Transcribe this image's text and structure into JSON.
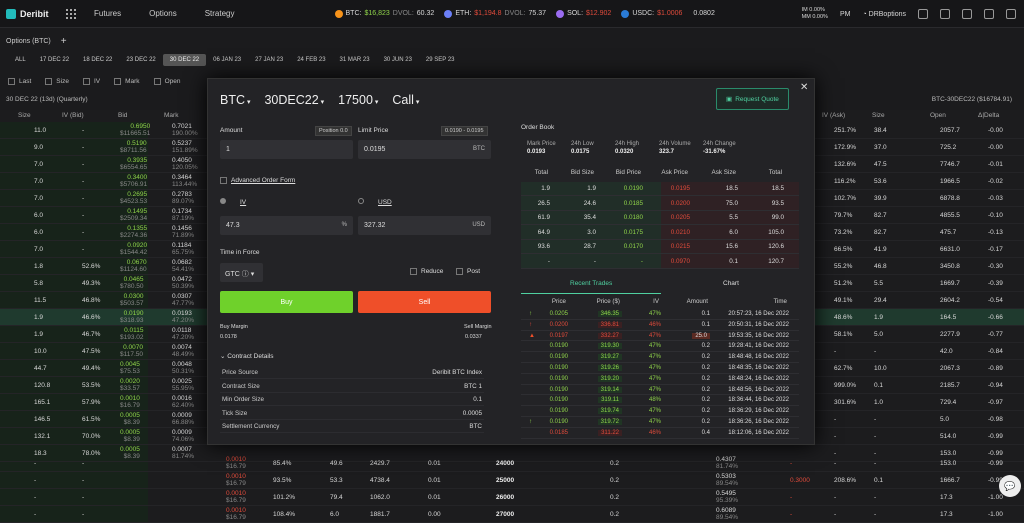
{
  "topbar": {
    "brand": "Deribit",
    "nav": [
      "Futures",
      "Options",
      "Strategy"
    ],
    "btc": {
      "label": "BTC:",
      "price": "$16,823",
      "dvol_label": "DVOL:",
      "dvol": "60.32"
    },
    "eth": {
      "label": "ETH:",
      "price": "$1,194.8",
      "dvol_label": "DVOL:",
      "dvol": "75.37"
    },
    "sol": {
      "label": "SOL:",
      "price": "$12.902"
    },
    "usdc": {
      "label": "USDC:",
      "price": "$1.0006",
      "extra": "0.0802"
    },
    "im_label": "IM",
    "im_val": "0.00%",
    "mm_label": "MM",
    "mm_val": "0.00%",
    "time": "PM",
    "account": "DRBoptions",
    "colors": {
      "btc": "#f7931a",
      "eth": "#6b7ff7",
      "sol": "#9a6cf0",
      "usdc": "#2a7bd6"
    }
  },
  "subbar": {
    "title": "Options (BTC)",
    "plus": "+"
  },
  "dates": [
    "ALL",
    "17 DEC 22",
    "18 DEC 22",
    "23 DEC 22",
    "30 DEC 22",
    "06 JAN 23",
    "27 JAN 23",
    "24 FEB 23",
    "31 MAR 23",
    "30 JUN 23",
    "29 SEP 23"
  ],
  "active_date": "30 DEC 22",
  "filters": [
    "Last",
    "Size",
    "IV",
    "Mark",
    "Open"
  ],
  "quarter": "30 DEC 22 (13d) (Quarterly)",
  "right_title": "BTC-30DEC22 ($16784.91)",
  "bg_headers": [
    "Size",
    "IV (Bid)",
    "Bid",
    "Mark",
    "IV (Ask)",
    "Size",
    "Open",
    "Δ|Delta"
  ],
  "bg_left": [
    {
      "size": "11.0",
      "iv": "-",
      "bid": "0.6950",
      "bidusd": "$11665.51",
      "mark": "0.7021",
      "markiv": "190.00%"
    },
    {
      "size": "9.0",
      "iv": "-",
      "bid": "0.5190",
      "bidusd": "$8711.56",
      "mark": "0.5237",
      "markiv": "151.89%"
    },
    {
      "size": "7.0",
      "iv": "-",
      "bid": "0.3935",
      "bidusd": "$6554.65",
      "mark": "0.4050",
      "markiv": "120.05%"
    },
    {
      "size": "7.0",
      "iv": "-",
      "bid": "0.3400",
      "bidusd": "$5706.91",
      "mark": "0.3464",
      "markiv": "113.44%"
    },
    {
      "size": "7.0",
      "iv": "-",
      "bid": "0.2695",
      "bidusd": "$4523.53",
      "mark": "0.2783",
      "markiv": "89.07%"
    },
    {
      "size": "6.0",
      "iv": "-",
      "bid": "0.1495",
      "bidusd": "$2509.34",
      "mark": "0.1734",
      "markiv": "87.19%"
    },
    {
      "size": "6.0",
      "iv": "-",
      "bid": "0.1355",
      "bidusd": "$2274.36",
      "mark": "0.1456",
      "markiv": "71.89%"
    },
    {
      "size": "7.0",
      "iv": "-",
      "bid": "0.0920",
      "bidusd": "$1544.42",
      "mark": "0.1184",
      "markiv": "65.75%"
    },
    {
      "size": "1.8",
      "iv": "52.6%",
      "bid": "0.0670",
      "bidusd": "$1124.60",
      "mark": "0.0682",
      "markiv": "54.41%"
    },
    {
      "size": "5.8",
      "iv": "49.3%",
      "bid": "0.0465",
      "bidusd": "$780.50",
      "mark": "0.0472",
      "markiv": "50.39%"
    },
    {
      "size": "11.5",
      "iv": "46.8%",
      "bid": "0.0300",
      "bidusd": "$503.57",
      "mark": "0.0307",
      "markiv": "47.77%"
    },
    {
      "size": "1.9",
      "iv": "46.6%",
      "bid": "0.0190",
      "bidusd": "$318.93",
      "mark": "0.0193",
      "markiv": "47.20%"
    },
    {
      "size": "1.9",
      "iv": "46.7%",
      "bid": "0.0115",
      "bidusd": "$193.02",
      "mark": "0.0118",
      "markiv": "47.20%"
    },
    {
      "size": "10.0",
      "iv": "47.5%",
      "bid": "0.0070",
      "bidusd": "$117.50",
      "mark": "0.0074",
      "markiv": "48.49%"
    },
    {
      "size": "44.7",
      "iv": "49.4%",
      "bid": "0.0045",
      "bidusd": "$75.53",
      "mark": "0.0048",
      "markiv": "50.31%"
    },
    {
      "size": "120.8",
      "iv": "53.5%",
      "bid": "0.0020",
      "bidusd": "$33.57",
      "mark": "0.0025",
      "markiv": "55.95%"
    },
    {
      "size": "165.1",
      "iv": "57.9%",
      "bid": "0.0010",
      "bidusd": "$16.79",
      "mark": "0.0016",
      "markiv": "62.40%"
    },
    {
      "size": "146.5",
      "iv": "61.5%",
      "bid": "0.0005",
      "bidusd": "$8.39",
      "mark": "0.0009",
      "markiv": "66.88%"
    },
    {
      "size": "132.1",
      "iv": "70.0%",
      "bid": "0.0005",
      "bidusd": "$8.39",
      "mark": "0.0009",
      "markiv": "74.06%"
    },
    {
      "size": "18.3",
      "iv": "78.0%",
      "bid": "0.0005",
      "bidusd": "$8.39",
      "mark": "0.0007",
      "markiv": "81.74%"
    },
    {
      "size": "-",
      "iv": "-",
      "bid": "",
      "bidusd": "",
      "mark": "0.0007",
      "markiv": "88.88%"
    },
    {
      "size": "-",
      "iv": "-",
      "bid": "",
      "bidusd": "",
      "mark": "0.0007",
      "markiv": "95.39%"
    },
    {
      "size": "-",
      "iv": "-",
      "bid": "",
      "bidusd": "",
      "mark": "0.0002",
      "markiv": "89.54%"
    }
  ],
  "bg_right": [
    {
      "ivask": "251.7%",
      "size": "38.4",
      "open": "2057.7",
      "delta": "-0.00"
    },
    {
      "ivask": "172.9%",
      "size": "37.0",
      "open": "725.2",
      "delta": "-0.00"
    },
    {
      "ivask": "132.6%",
      "size": "47.5",
      "open": "7746.7",
      "delta": "-0.01"
    },
    {
      "ivask": "116.2%",
      "size": "53.6",
      "open": "1966.5",
      "delta": "-0.02"
    },
    {
      "ivask": "102.7%",
      "size": "39.9",
      "open": "6878.8",
      "delta": "-0.03"
    },
    {
      "ivask": "79.7%",
      "size": "82.7",
      "open": "4855.5",
      "delta": "-0.10"
    },
    {
      "ivask": "73.2%",
      "size": "82.7",
      "open": "475.7",
      "delta": "-0.13"
    },
    {
      "ivask": "66.5%",
      "size": "41.9",
      "open": "6631.0",
      "delta": "-0.17"
    },
    {
      "ivask": "55.2%",
      "size": "46.8",
      "open": "3450.8",
      "delta": "-0.30"
    },
    {
      "ivask": "51.2%",
      "size": "5.5",
      "open": "1669.7",
      "delta": "-0.39"
    },
    {
      "ivask": "49.1%",
      "size": "29.4",
      "open": "2604.2",
      "delta": "-0.54"
    },
    {
      "ivask": "48.6%",
      "size": "1.9",
      "open": "164.5",
      "delta": "-0.66"
    },
    {
      "ivask": "58.1%",
      "size": "5.0",
      "open": "2277.9",
      "delta": "-0.77"
    },
    {
      "ivask": "-",
      "size": "-",
      "open": "42.0",
      "delta": "-0.84"
    },
    {
      "ivask": "62.7%",
      "size": "10.0",
      "open": "2067.3",
      "delta": "-0.89"
    },
    {
      "ivask": "999.0%",
      "size": "0.1",
      "open": "2185.7",
      "delta": "-0.94"
    },
    {
      "ivask": "301.6%",
      "size": "1.0",
      "open": "729.4",
      "delta": "-0.97"
    },
    {
      "ivask": "-",
      "size": "-",
      "open": "5.0",
      "delta": "-0.98"
    },
    {
      "ivask": "-",
      "size": "-",
      "open": "514.0",
      "delta": "-0.99"
    },
    {
      "ivask": "-",
      "size": "-",
      "open": "153.0",
      "delta": "-0.99"
    },
    {
      "ivask": "208.6%",
      "size": "0.1",
      "open": "1666.7",
      "delta": "-0.99"
    },
    {
      "ivask": "-",
      "size": "-",
      "open": "17.3",
      "delta": "-1.00"
    },
    {
      "ivask": "-",
      "size": "-",
      "open": "17.3",
      "delta": "-1.00"
    }
  ],
  "bg_bottom": [
    {
      "bid": "0.0010",
      "bidusd": "$16.79",
      "iv": "85.4%",
      "a": "49.6",
      "b": "2429.7",
      "c": "0.01",
      "strike": "24000",
      "p": "0.2",
      "m": "0.4307",
      "miv": "81.74%",
      "q": "-"
    },
    {
      "bid": "0.0010",
      "bidusd": "$16.79",
      "iv": "93.5%",
      "a": "53.3",
      "b": "4738.4",
      "c": "0.01",
      "strike": "25000",
      "p": "0.2",
      "m": "0.5303",
      "miv": "89.54%",
      "q": "0.3000"
    },
    {
      "bid": "0.0010",
      "bidusd": "$16.79",
      "iv": "101.2%",
      "a": "79.4",
      "b": "1062.0",
      "c": "0.01",
      "strike": "26000",
      "p": "0.2",
      "m": "0.5495",
      "miv": "95.39%",
      "q": "-"
    },
    {
      "bid": "0.0010",
      "bidusd": "$16.79",
      "iv": "108.4%",
      "a": "6.0",
      "b": "1881.7",
      "c": "0.00",
      "strike": "27000",
      "p": "0.2",
      "m": "0.6089",
      "miv": "89.54%",
      "q": "-"
    }
  ],
  "modal": {
    "asset": "BTC",
    "expiry": "30DEC22",
    "strike": "17500",
    "type": "Call",
    "request_quote": "Request Quote",
    "amount_label": "Amount",
    "position": "Position 0.0",
    "amount": "1",
    "limit_label": "Limit Price",
    "limit_range": "0.0190 - 0.0195",
    "limit": "0.0195",
    "limit_unit": "BTC",
    "advanced": "Advanced Order Form",
    "iv_label": "IV",
    "usd_label": "USD",
    "iv_value": "47.3",
    "iv_unit": "%",
    "usd_value": "327.32",
    "usd_unit": "USD",
    "tif_label": "Time in Force",
    "tif": "GTC",
    "reduce": "Reduce",
    "post": "Post",
    "buy": "Buy",
    "sell": "Sell",
    "buy_margin_label": "Buy Margin",
    "buy_margin": "0.0178",
    "sell_margin_label": "Sell Margin",
    "sell_margin": "0.0337",
    "contract_details": "Contract Details",
    "details": [
      {
        "k": "Price Source",
        "v": "Deribit BTC Index"
      },
      {
        "k": "Contract Size",
        "v": "BTC 1"
      },
      {
        "k": "Min Order Size",
        "v": "0.1"
      },
      {
        "k": "Tick Size",
        "v": "0.0005"
      },
      {
        "k": "Settlement Currency",
        "v": "BTC"
      }
    ],
    "orderbook_title": "Order Book",
    "stats": [
      {
        "t": "Mark Price",
        "n": "0.0193"
      },
      {
        "t": "24h Low",
        "n": "0.0175"
      },
      {
        "t": "24h High",
        "n": "0.0320"
      },
      {
        "t": "24h Volume",
        "n": "323.7"
      },
      {
        "t": "24h Change",
        "n": "-31.67%"
      }
    ],
    "ob_headers": [
      "Total",
      "Bid Size",
      "Bid Price",
      "Ask Price",
      "Ask Size",
      "Total"
    ],
    "ob_rows": [
      [
        "1.9",
        "1.9",
        "0.0190",
        "0.0195",
        "18.5",
        "18.5"
      ],
      [
        "26.5",
        "24.6",
        "0.0185",
        "0.0200",
        "75.0",
        "93.5"
      ],
      [
        "61.9",
        "35.4",
        "0.0180",
        "0.0205",
        "5.5",
        "99.0"
      ],
      [
        "64.9",
        "3.0",
        "0.0175",
        "0.0210",
        "6.0",
        "105.0"
      ],
      [
        "93.6",
        "28.7",
        "0.0170",
        "0.0215",
        "15.6",
        "120.6"
      ],
      [
        "-",
        "-",
        "-",
        "0.0970",
        "0.1",
        "120.7"
      ]
    ],
    "tab_recent": "Recent Trades",
    "tab_chart": "Chart",
    "tr_headers": [
      "Price",
      "Price ($)",
      "IV",
      "Amount",
      "Time"
    ],
    "trades": [
      {
        "dir": "up",
        "price": "0.0205",
        "usd": "346.35",
        "iv": "47%",
        "amt": "0.1",
        "time": "20:57:23, 16 Dec 2022",
        "side": "buy"
      },
      {
        "dir": "up",
        "price": "0.0200",
        "usd": "336.81",
        "iv": "46%",
        "amt": "0.1",
        "time": "20:50:31, 16 Dec 2022",
        "side": "sell"
      },
      {
        "dir": "warn",
        "price": "0.0197",
        "usd": "332.27",
        "iv": "47%",
        "amt": "25.0",
        "time": "19:53:35, 16 Dec 2022",
        "side": "sell"
      },
      {
        "dir": "",
        "price": "0.0190",
        "usd": "319.30",
        "iv": "47%",
        "amt": "0.2",
        "time": "19:28:41, 16 Dec 2022",
        "side": "buy"
      },
      {
        "dir": "",
        "price": "0.0190",
        "usd": "319.27",
        "iv": "47%",
        "amt": "0.2",
        "time": "18:48:48, 16 Dec 2022",
        "side": "buy"
      },
      {
        "dir": "",
        "price": "0.0190",
        "usd": "319.26",
        "iv": "47%",
        "amt": "0.2",
        "time": "18:48:35, 16 Dec 2022",
        "side": "buy"
      },
      {
        "dir": "",
        "price": "0.0190",
        "usd": "319.20",
        "iv": "47%",
        "amt": "0.2",
        "time": "18:48:24, 16 Dec 2022",
        "side": "buy"
      },
      {
        "dir": "",
        "price": "0.0190",
        "usd": "319.14",
        "iv": "47%",
        "amt": "0.2",
        "time": "18:48:56, 16 Dec 2022",
        "side": "buy"
      },
      {
        "dir": "",
        "price": "0.0190",
        "usd": "319.11",
        "iv": "48%",
        "amt": "0.2",
        "time": "18:36:44, 16 Dec 2022",
        "side": "buy"
      },
      {
        "dir": "",
        "price": "0.0190",
        "usd": "319.74",
        "iv": "47%",
        "amt": "0.2",
        "time": "18:36:29, 16 Dec 2022",
        "side": "buy"
      },
      {
        "dir": "up",
        "price": "0.0190",
        "usd": "319.72",
        "iv": "47%",
        "amt": "0.2",
        "time": "18:36:26, 16 Dec 2022",
        "side": "buy"
      },
      {
        "dir": "",
        "price": "0.0185",
        "usd": "311.22",
        "iv": "46%",
        "amt": "0.4",
        "time": "18:12:06, 16 Dec 2022",
        "side": "sell"
      }
    ]
  }
}
